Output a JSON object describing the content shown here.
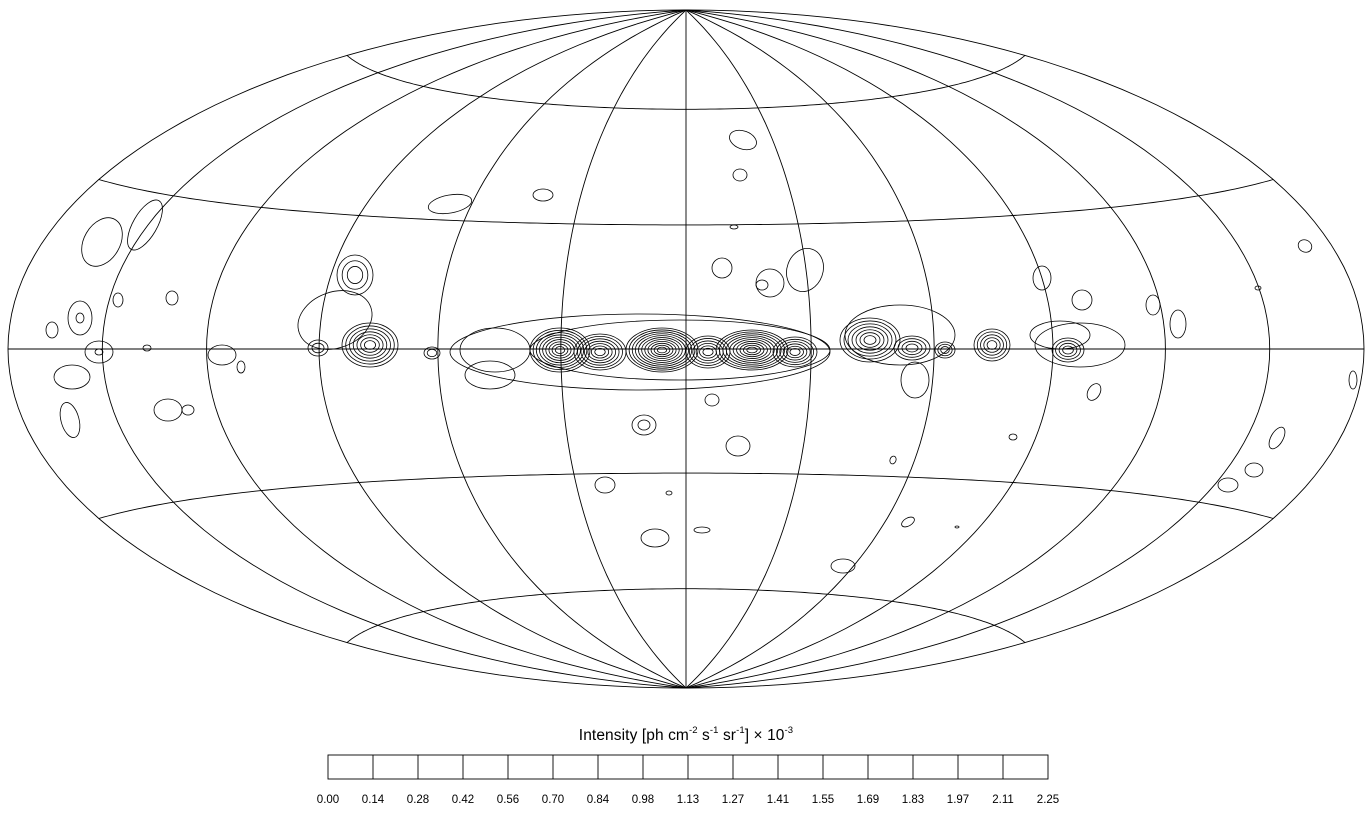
{
  "map": {
    "projection": "Aitoff / Hammer all-sky",
    "meridians_deg": [
      -180,
      -150,
      -120,
      -90,
      -60,
      -30,
      0,
      30,
      60,
      90,
      120,
      150,
      180
    ],
    "parallels_deg": [
      -60,
      -30,
      0,
      30,
      60
    ]
  },
  "legend": {
    "title_prefix": "Intensity [ph cm",
    "exp1": "-2",
    "mid1": " s",
    "exp2": "-1",
    "mid2": " sr",
    "exp3": "-1",
    "suffix": "]  × 10",
    "exp4": "-3",
    "ticks": [
      "0.00",
      "0.14",
      "0.28",
      "0.42",
      "0.56",
      "0.70",
      "0.84",
      "0.98",
      "1.13",
      "1.27",
      "1.41",
      "1.55",
      "1.69",
      "1.83",
      "1.97",
      "2.11",
      "2.25"
    ]
  }
}
